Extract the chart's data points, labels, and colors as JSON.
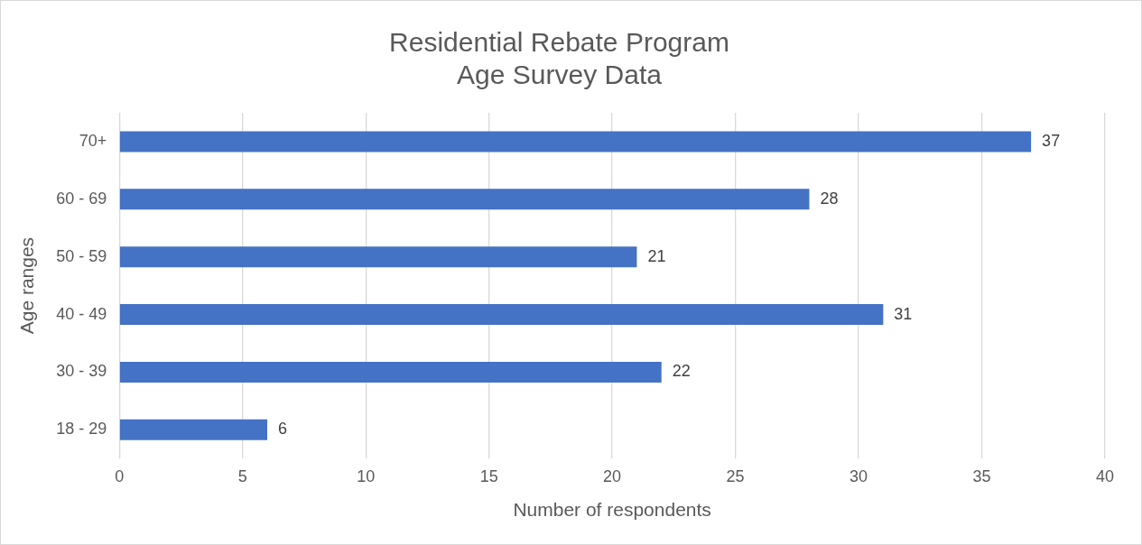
{
  "chart_data": {
    "type": "bar",
    "orientation": "horizontal",
    "title": "Residential Rebate Program\nAge Survey Data",
    "xlabel": "Number of respondents",
    "ylabel": "Age ranges",
    "categories": [
      "70+",
      "60 - 69",
      "50 - 59",
      "40 - 49",
      "30 - 39",
      "18 - 29"
    ],
    "values": [
      37,
      28,
      21,
      31,
      22,
      6
    ],
    "color": "#4472c4",
    "xlim": [
      0,
      40
    ],
    "xticks": [
      0,
      5,
      10,
      15,
      20,
      25,
      30,
      35,
      40
    ],
    "grid": "x",
    "data_labels": true,
    "legend": false
  }
}
